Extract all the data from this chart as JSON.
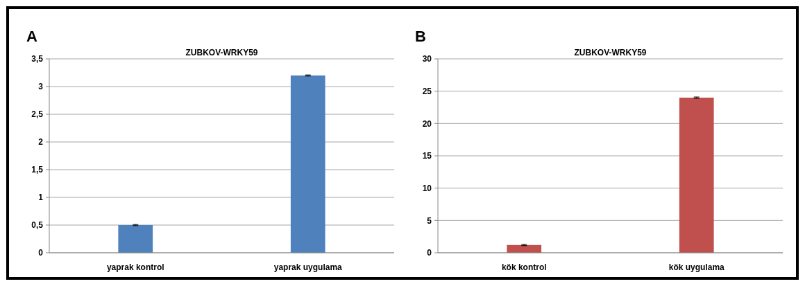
{
  "chart_data": [
    {
      "type": "bar",
      "title": "ZUBKOV-WRKY59",
      "annotations": [
        "A"
      ],
      "categories": [
        "yaprak kontrol",
        "yaprak uygulama"
      ],
      "values": [
        0.5,
        3.2
      ],
      "errors": [
        0.01,
        0.01
      ],
      "color": "#4f81bd",
      "ylim": [
        0,
        3.5
      ],
      "yticks": [
        0,
        {
          "value": 0.5,
          "label": "0,5"
        },
        1,
        {
          "value": 1.5,
          "label": "1,5"
        },
        2,
        {
          "value": 2.5,
          "label": "2,5"
        },
        3,
        {
          "value": 3.5,
          "label": "3,5"
        }
      ],
      "grid": "y"
    },
    {
      "type": "bar",
      "title": "ZUBKOV-WRKY59",
      "annotations": [
        "B"
      ],
      "categories": [
        "kök kontrol",
        "kök uygulama"
      ],
      "values": [
        1.2,
        24
      ],
      "errors": [
        0.1,
        0.1
      ],
      "color": "#c0504d",
      "ylim": [
        0,
        30
      ],
      "yticks": [
        0,
        5,
        10,
        15,
        20,
        25,
        30
      ],
      "grid": "y"
    }
  ]
}
